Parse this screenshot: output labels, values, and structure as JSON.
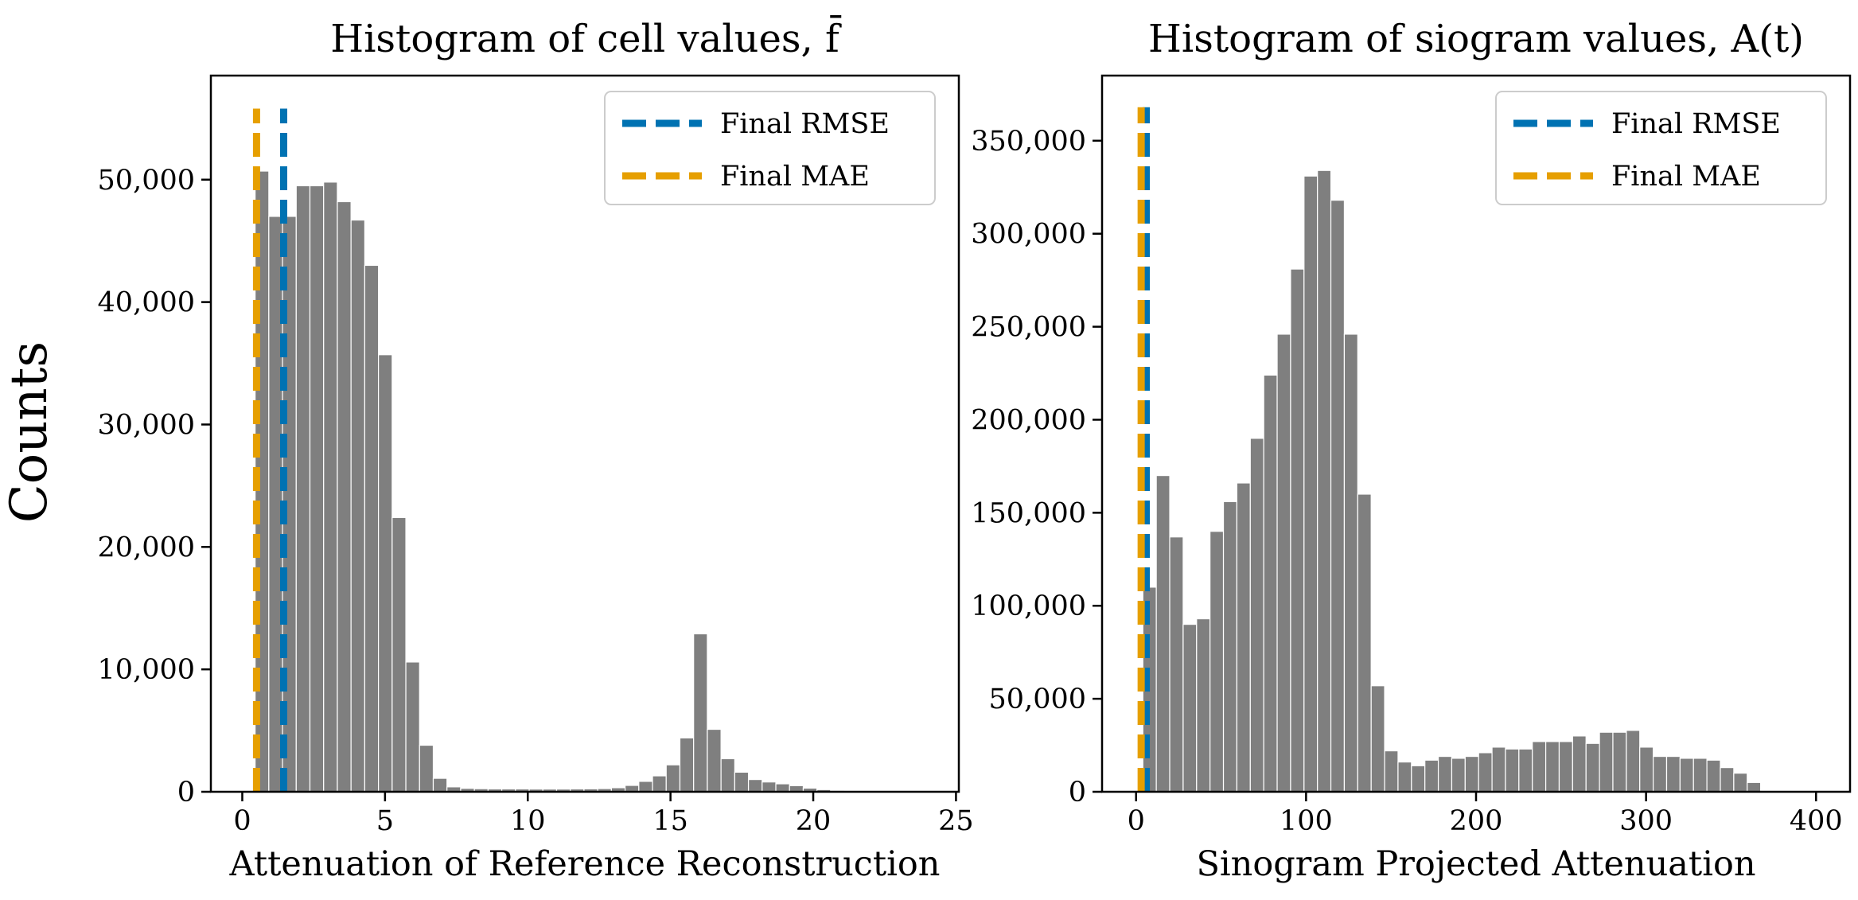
{
  "figure": {
    "shared_ylabel": "Counts"
  },
  "chart_data": [
    {
      "type": "bar",
      "title": "Histogram of cell values, f̄",
      "xlabel": "Attenuation of Reference Reconstruction",
      "ylabel": "Counts",
      "xlim": [
        -1.1,
        25.1
      ],
      "ylim": [
        0,
        58500
      ],
      "x_ticks": [
        0,
        5,
        10,
        15,
        20,
        25
      ],
      "x_tick_labels": [
        "0",
        "5",
        "10",
        "15",
        "20",
        "25"
      ],
      "y_ticks": [
        0,
        10000,
        20000,
        30000,
        40000,
        50000
      ],
      "y_tick_labels": [
        "0",
        "10,000",
        "20,000",
        "30,000",
        "40,000",
        "50,000"
      ],
      "bin_start": 0.45,
      "bin_width": 0.48,
      "values": [
        50700,
        47000,
        47000,
        49500,
        49500,
        49800,
        48200,
        46700,
        43000,
        35700,
        22400,
        10600,
        3800,
        1100,
        400,
        280,
        250,
        230,
        230,
        230,
        220,
        220,
        220,
        230,
        240,
        260,
        330,
        520,
        850,
        1300,
        2200,
        4400,
        12900,
        5100,
        2700,
        1600,
        1000,
        800,
        650,
        500,
        300,
        180,
        110,
        60,
        30,
        15
      ],
      "color": "#7f7f7f",
      "vlines": [
        {
          "name": "Final RMSE",
          "x": 1.45,
          "ymax": 55800,
          "color": "#0072b2"
        },
        {
          "name": "Final MAE",
          "x": 0.5,
          "ymax": 55800,
          "color": "#e69f00"
        }
      ],
      "legend": {
        "position": "upper right",
        "entries": [
          "Final RMSE",
          "Final MAE"
        ]
      }
    },
    {
      "type": "bar",
      "title": "Histogram of siogram values, A(t)",
      "xlabel": "Sinogram Projected Attenuation",
      "ylabel": "Counts",
      "xlim": [
        -20,
        420
      ],
      "ylim": [
        0,
        385000
      ],
      "x_ticks": [
        0,
        100,
        200,
        300,
        400
      ],
      "x_tick_labels": [
        "0",
        "100",
        "200",
        "300",
        "400"
      ],
      "y_ticks": [
        0,
        50000,
        100000,
        150000,
        200000,
        250000,
        300000,
        350000
      ],
      "y_tick_labels": [
        "0",
        "50,000",
        "100,000",
        "150,000",
        "200,000",
        "250,000",
        "300,000",
        "350,000"
      ],
      "bin_start": 4.0,
      "bin_width": 7.9,
      "values": [
        110000,
        170000,
        137000,
        90000,
        93000,
        140000,
        156000,
        166000,
        190000,
        224000,
        246000,
        281000,
        331000,
        334000,
        318000,
        246000,
        160000,
        57000,
        22000,
        16000,
        14000,
        17000,
        19000,
        18000,
        19000,
        21000,
        24000,
        23000,
        23000,
        27000,
        27000,
        27000,
        30000,
        26000,
        32000,
        32000,
        33000,
        24000,
        19000,
        19000,
        18000,
        18000,
        17000,
        13000,
        10000,
        5000
      ],
      "color": "#7f7f7f",
      "vlines": [
        {
          "name": "Final RMSE",
          "x": 6.0,
          "ymax": 368000,
          "color": "#0072b2"
        },
        {
          "name": "Final MAE",
          "x": 3.0,
          "ymax": 368000,
          "color": "#e69f00"
        }
      ],
      "legend": {
        "position": "upper right",
        "entries": [
          "Final RMSE",
          "Final MAE"
        ]
      }
    }
  ]
}
